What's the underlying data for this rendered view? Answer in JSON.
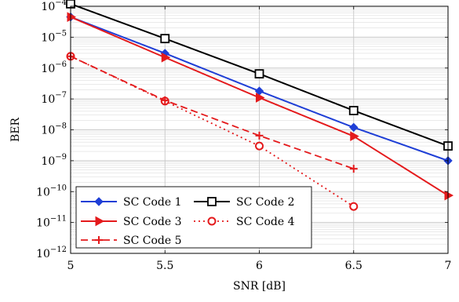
{
  "chart_data": {
    "type": "line",
    "xlabel": "SNR [dB]",
    "ylabel": "BER",
    "y_scale": "log",
    "xlim": [
      5,
      7
    ],
    "ylim": [
      1e-12,
      0.0001
    ],
    "grid": true,
    "legend_placement": "bottom-left",
    "x_ticks": [
      "5",
      "5.5",
      "6",
      "6.5",
      "7"
    ],
    "y_ticks": [
      {
        "base": "10",
        "exp": "−4"
      },
      {
        "base": "10",
        "exp": "−5"
      },
      {
        "base": "10",
        "exp": "−6"
      },
      {
        "base": "10",
        "exp": "−7"
      },
      {
        "base": "10",
        "exp": "−8"
      },
      {
        "base": "10",
        "exp": "−9"
      },
      {
        "base": "10",
        "exp": "−10"
      },
      {
        "base": "10",
        "exp": "−11"
      },
      {
        "base": "10",
        "exp": "−12"
      }
    ],
    "series": [
      {
        "name": "SC Code 1",
        "color": "#1f3fd6",
        "marker": "diamond",
        "dash": "solid",
        "x": [
          5,
          5.5,
          6,
          6.5,
          7
        ],
        "y": [
          4.5e-05,
          3e-06,
          1.8e-07,
          1.2e-08,
          1e-09
        ]
      },
      {
        "name": "SC Code 2",
        "color": "#000000",
        "marker": "square",
        "dash": "solid",
        "x": [
          5,
          5.5,
          6,
          6.5,
          7
        ],
        "y": [
          0.00012,
          9e-06,
          6.5e-07,
          4.2e-08,
          3e-09
        ]
      },
      {
        "name": "SC Code 3",
        "color": "#e41a1c",
        "marker": "triangle-right",
        "dash": "solid",
        "x": [
          5,
          5.5,
          6,
          6.5,
          7
        ],
        "y": [
          4.5e-05,
          2.2e-06,
          1.1e-07,
          6.2e-09,
          7.5e-11
        ]
      },
      {
        "name": "SC Code 4",
        "color": "#e41a1c",
        "marker": "circle",
        "dash": "dotted",
        "x": [
          5,
          5.5,
          6,
          6.5
        ],
        "y": [
          2.4e-06,
          8.5e-08,
          3e-09,
          3.3e-11
        ]
      },
      {
        "name": "SC Code 5",
        "color": "#e41a1c",
        "marker": "plus",
        "dash": "dashed",
        "x": [
          5,
          5.5,
          6,
          6.5
        ],
        "y": [
          2.4e-06,
          9e-08,
          6.5e-09,
          5.5e-10
        ]
      }
    ]
  }
}
